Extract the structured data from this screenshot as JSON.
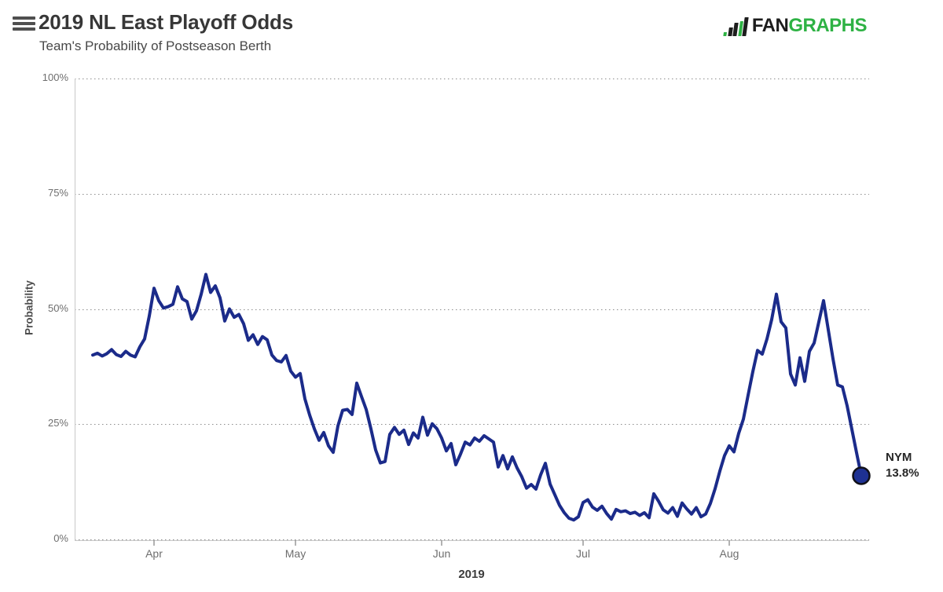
{
  "header": {
    "title": "2019 NL East Playoff Odds",
    "subtitle": "Team's Probability of Postseason Berth",
    "logo": {
      "fan": "FAN",
      "graphs": "GRAPHS"
    }
  },
  "colors": {
    "line": "#1b2b8a",
    "marker_fill": "#1e3193",
    "marker_stroke": "#101018",
    "gridline": "#8c8c8c",
    "axis": "#c8c8c8",
    "logo_green": "#2eb244"
  },
  "chart_data": {
    "type": "line",
    "title": "2019 NL East Playoff Odds",
    "subtitle": "Team's Probability of Postseason Berth",
    "xlabel": "2019",
    "ylabel": "Probability",
    "ylim": [
      0,
      100
    ],
    "grid": "dotted-horizontal",
    "legend_position": "none",
    "y_ticks": [
      {
        "label": "0%",
        "value": 0
      },
      {
        "label": "25%",
        "value": 25
      },
      {
        "label": "50%",
        "value": 50
      },
      {
        "label": "75%",
        "value": 75
      },
      {
        "label": "100%",
        "value": 100
      }
    ],
    "x_ticks": [
      {
        "label": "Apr",
        "day_index": 13
      },
      {
        "label": "May",
        "day_index": 43
      },
      {
        "label": "Jun",
        "day_index": 74
      },
      {
        "label": "Jul",
        "day_index": 104
      },
      {
        "label": "Aug",
        "day_index": 135
      }
    ],
    "series": [
      {
        "name": "NYM",
        "start_date": "2019-03-19",
        "cadence": "daily",
        "values": [
          40.0,
          40.4,
          39.8,
          40.3,
          41.2,
          40.1,
          39.7,
          40.8,
          40.0,
          39.6,
          41.8,
          43.5,
          48.5,
          54.5,
          51.8,
          50.2,
          50.5,
          51.0,
          54.8,
          52.2,
          51.6,
          47.8,
          49.6,
          53.2,
          57.5,
          53.6,
          55.0,
          52.4,
          47.4,
          50.0,
          48.2,
          48.8,
          46.8,
          43.2,
          44.4,
          42.3,
          44.0,
          43.3,
          40.0,
          38.8,
          38.5,
          39.9,
          36.5,
          35.2,
          36.0,
          30.5,
          27.0,
          24.0,
          21.5,
          23.2,
          20.3,
          18.9,
          24.6,
          28.0,
          28.2,
          27.1,
          33.9,
          31.0,
          28.2,
          24.0,
          19.4,
          16.6,
          16.9,
          22.8,
          24.3,
          22.8,
          23.7,
          20.6,
          23.1,
          22.0,
          26.5,
          22.6,
          25.1,
          24.0,
          22.0,
          19.2,
          20.8,
          16.2,
          18.5,
          21.1,
          20.5,
          22.0,
          21.3,
          22.5,
          21.8,
          21.1,
          15.7,
          18.2,
          15.3,
          17.9,
          15.5,
          13.6,
          11.1,
          11.9,
          10.9,
          14.0,
          16.5,
          12.0,
          9.7,
          7.4,
          5.8,
          4.6,
          4.2,
          4.9,
          8.0,
          8.6,
          7.0,
          6.3,
          7.2,
          5.6,
          4.4,
          6.5,
          6.0,
          6.2,
          5.6,
          5.9,
          5.2,
          5.8,
          4.7,
          9.9,
          8.3,
          6.4,
          5.7,
          6.9,
          5.0,
          7.9,
          6.6,
          5.5,
          6.9,
          4.9,
          5.5,
          7.8,
          11.0,
          14.8,
          18.2,
          20.3,
          19.0,
          23.0,
          26.1,
          31.3,
          36.4,
          41.0,
          40.2,
          43.5,
          47.7,
          53.2,
          47.2,
          45.9,
          35.9,
          33.5,
          39.4,
          34.3,
          40.8,
          42.6,
          47.2,
          51.8,
          45.5,
          39.2,
          33.5,
          33.1,
          29.0,
          23.9,
          18.8,
          13.8
        ]
      }
    ],
    "end_label": {
      "team": "NYM",
      "value": "13.8%"
    }
  }
}
